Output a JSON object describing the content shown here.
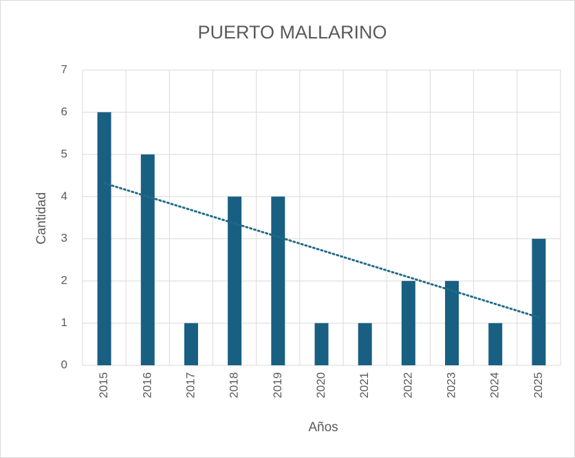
{
  "chart_data": {
    "type": "bar",
    "title": "PUERTO MALLARINO",
    "x_label": "Años",
    "y_label": "Cantidad",
    "categories": [
      "2015",
      "2016",
      "2017",
      "2018",
      "2019",
      "2020",
      "2021",
      "2022",
      "2023",
      "2024",
      "2025"
    ],
    "values": [
      6,
      5,
      1,
      4,
      4,
      1,
      1,
      2,
      2,
      1,
      3
    ],
    "color": "#185f82",
    "ylim": [
      0,
      7
    ],
    "yticks": [
      0,
      1,
      2,
      3,
      4,
      5,
      6,
      7
    ],
    "grid": true,
    "trendline": {
      "type": "linear",
      "color": "#1f6b87"
    }
  }
}
